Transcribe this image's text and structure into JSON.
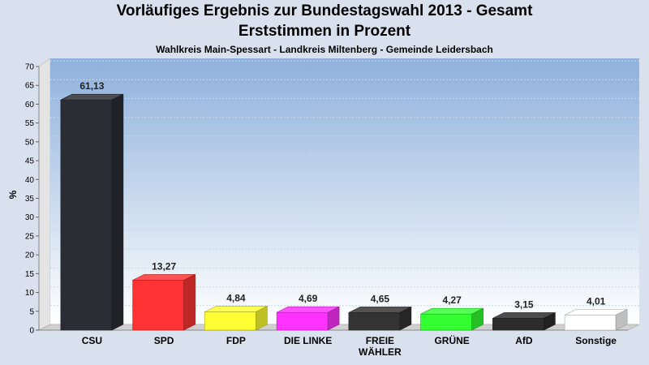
{
  "chart_data": {
    "type": "bar",
    "title": "Vorläufiges Ergebnis zur Bundestagswahl 2013 - Gesamt",
    "title_line2": "Erststimmen in Prozent",
    "subtitle": "Wahlkreis Main-Spessart - Landkreis Miltenberg - Gemeinde Leidersbach",
    "ylabel": "%",
    "xlabel": "",
    "ylim": [
      0,
      70
    ],
    "yticks": [
      0,
      5,
      10,
      15,
      20,
      25,
      30,
      35,
      40,
      45,
      50,
      55,
      60,
      65,
      70
    ],
    "grid": true,
    "legend": "none",
    "categories": [
      "CSU",
      "SPD",
      "FDP",
      "DIE LINKE",
      "FREIE WÄHLER",
      "GRÜNE",
      "AfD",
      "Sonstige"
    ],
    "category_lines": [
      [
        "CSU"
      ],
      [
        "SPD"
      ],
      [
        "FDP"
      ],
      [
        "DIE LINKE"
      ],
      [
        "FREIE",
        "WÄHLER"
      ],
      [
        "GRÜNE"
      ],
      [
        "AfD"
      ],
      [
        "Sonstige"
      ]
    ],
    "values": [
      61.13,
      13.27,
      4.84,
      4.69,
      4.65,
      4.27,
      3.15,
      4.01
    ],
    "value_labels": [
      "61,13",
      "13,27",
      "4,84",
      "4,69",
      "4,65",
      "4,27",
      "3,15",
      "4,01"
    ],
    "colors": [
      "#2a2d34",
      "#ff3333",
      "#ffff33",
      "#ff33ff",
      "#333333",
      "#33ff33",
      "#2c2c2c",
      "#ffffff"
    ]
  }
}
